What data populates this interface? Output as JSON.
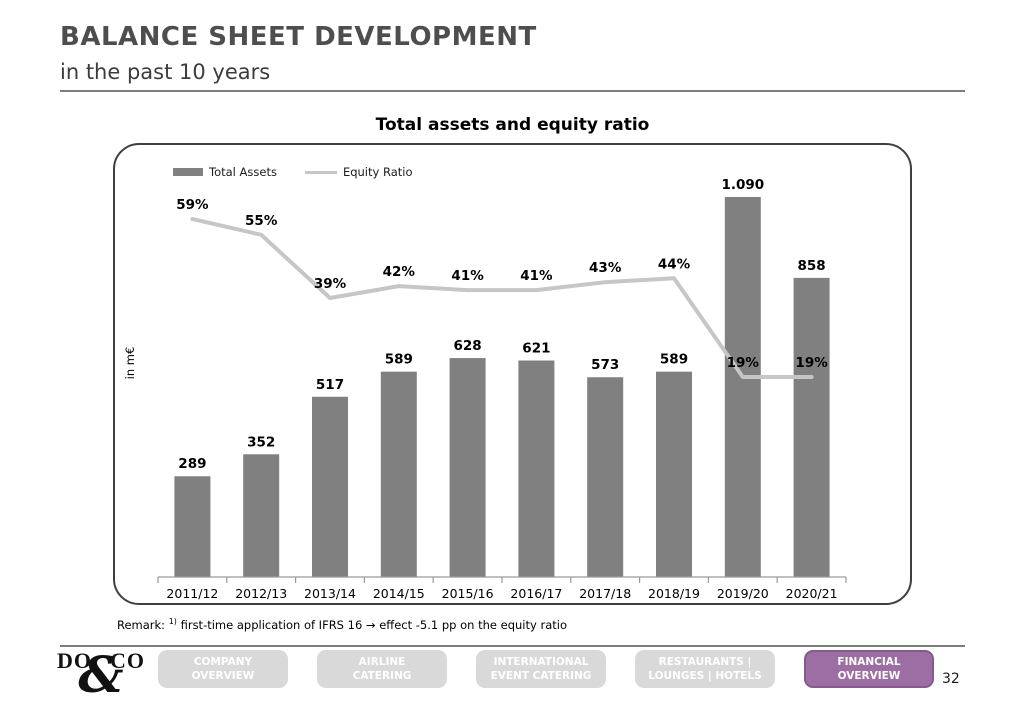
{
  "header": {
    "title": "BALANCE SHEET DEVELOPMENT",
    "subtitle": "in the past 10 years"
  },
  "chart": {
    "title": "Total assets and equity ratio",
    "ylabel": "in m€",
    "legend": {
      "total_assets": "Total Assets",
      "equity_ratio": "Equity Ratio"
    }
  },
  "chart_data": {
    "type": "bar",
    "title": "Total assets and equity ratio",
    "xlabel": "",
    "ylabel": "in m€",
    "grid": false,
    "legend_position": "top-left",
    "categories": [
      "2011/12",
      "2012/13",
      "2013/14",
      "2014/15",
      "2015/16",
      "2016/17",
      "2017/18",
      "2018/19",
      "2019/20",
      "2020/21"
    ],
    "series": [
      {
        "name": "Total Assets",
        "type": "bar",
        "unit": "m€",
        "color": "#808080",
        "values": [
          289,
          352,
          517,
          589,
          628,
          621,
          573,
          589,
          1090,
          858
        ],
        "labels": [
          "289",
          "352",
          "517",
          "589",
          "628",
          "621",
          "573",
          "589",
          "1.090",
          "858"
        ]
      },
      {
        "name": "Equity Ratio",
        "type": "line",
        "unit": "%",
        "color": "#c6c6c6",
        "values": [
          59,
          55,
          39,
          42,
          41,
          41,
          43,
          44,
          19,
          19
        ],
        "labels": [
          "59%",
          "55%",
          "39%",
          "42%",
          "41%",
          "41%",
          "43%",
          "44%",
          "19%",
          "19%"
        ]
      }
    ]
  },
  "remark": {
    "label": "Remark:",
    "superscript": "1)",
    "text": " first-time application of IFRS 16 → effect -5.1 pp on the equity ratio"
  },
  "footer": {
    "logo": {
      "left": "DO",
      "right": "CO",
      "amp": "&"
    },
    "nav": [
      {
        "line1": "COMPANY",
        "line2": "OVERVIEW"
      },
      {
        "line1": "AIRLINE",
        "line2": "CATERING"
      },
      {
        "line1": "INTERNATIONAL",
        "line2": "EVENT CATERING"
      },
      {
        "line1": "RESTAURANTS |",
        "line2": "LOUNGES | HOTELS"
      },
      {
        "line1": "FINANCIAL",
        "line2": "OVERVIEW"
      }
    ],
    "page_number": "32"
  },
  "colors": {
    "bar": "#808080",
    "line": "#c6c6c6",
    "accent_purple": "#9c6ea3",
    "nav_inactive": "#d9d9d9"
  }
}
